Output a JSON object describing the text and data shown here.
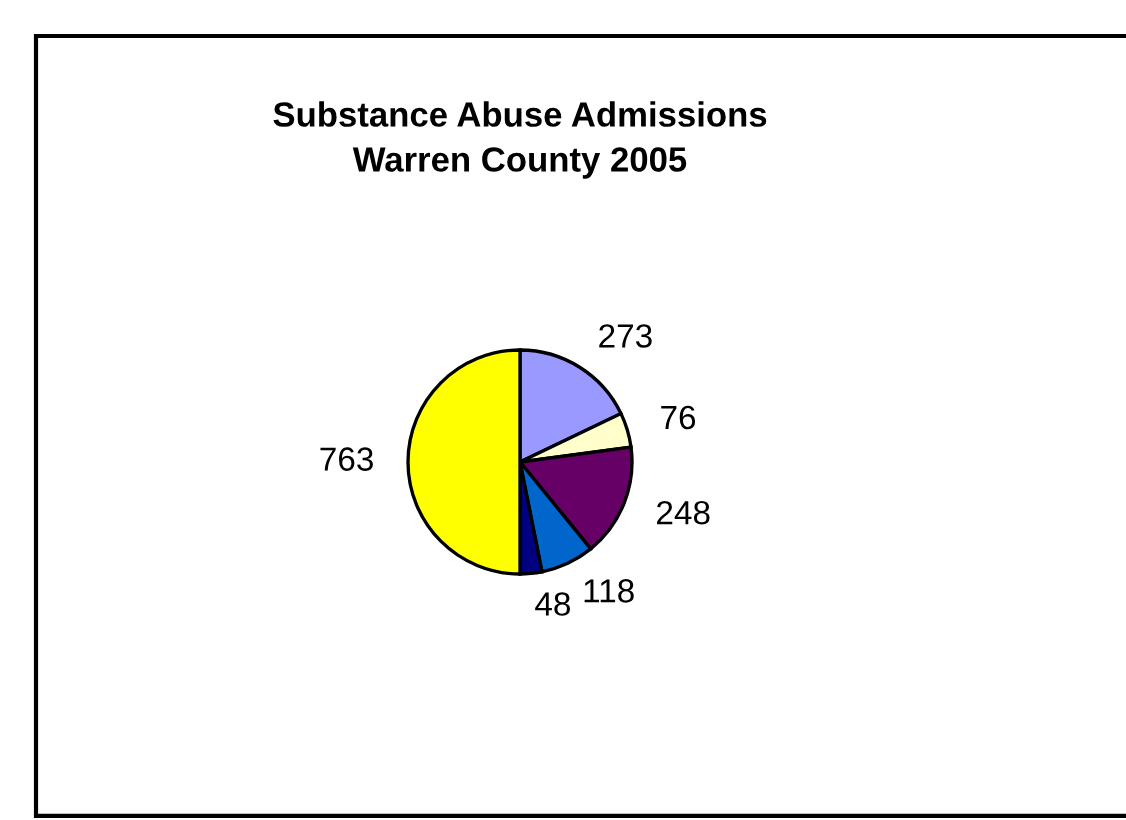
{
  "chart_data": {
    "type": "pie",
    "title": "Substance Abuse Admissions\nWarren County 2005",
    "categories": [
      null,
      null,
      null,
      null,
      null,
      null
    ],
    "values": [
      273,
      76,
      248,
      118,
      48,
      763
    ],
    "colors": [
      "#9999ff",
      "#ffffcc",
      "#660066",
      "#0066cc",
      "#000080",
      "#ffff00"
    ],
    "data_labels": true
  }
}
